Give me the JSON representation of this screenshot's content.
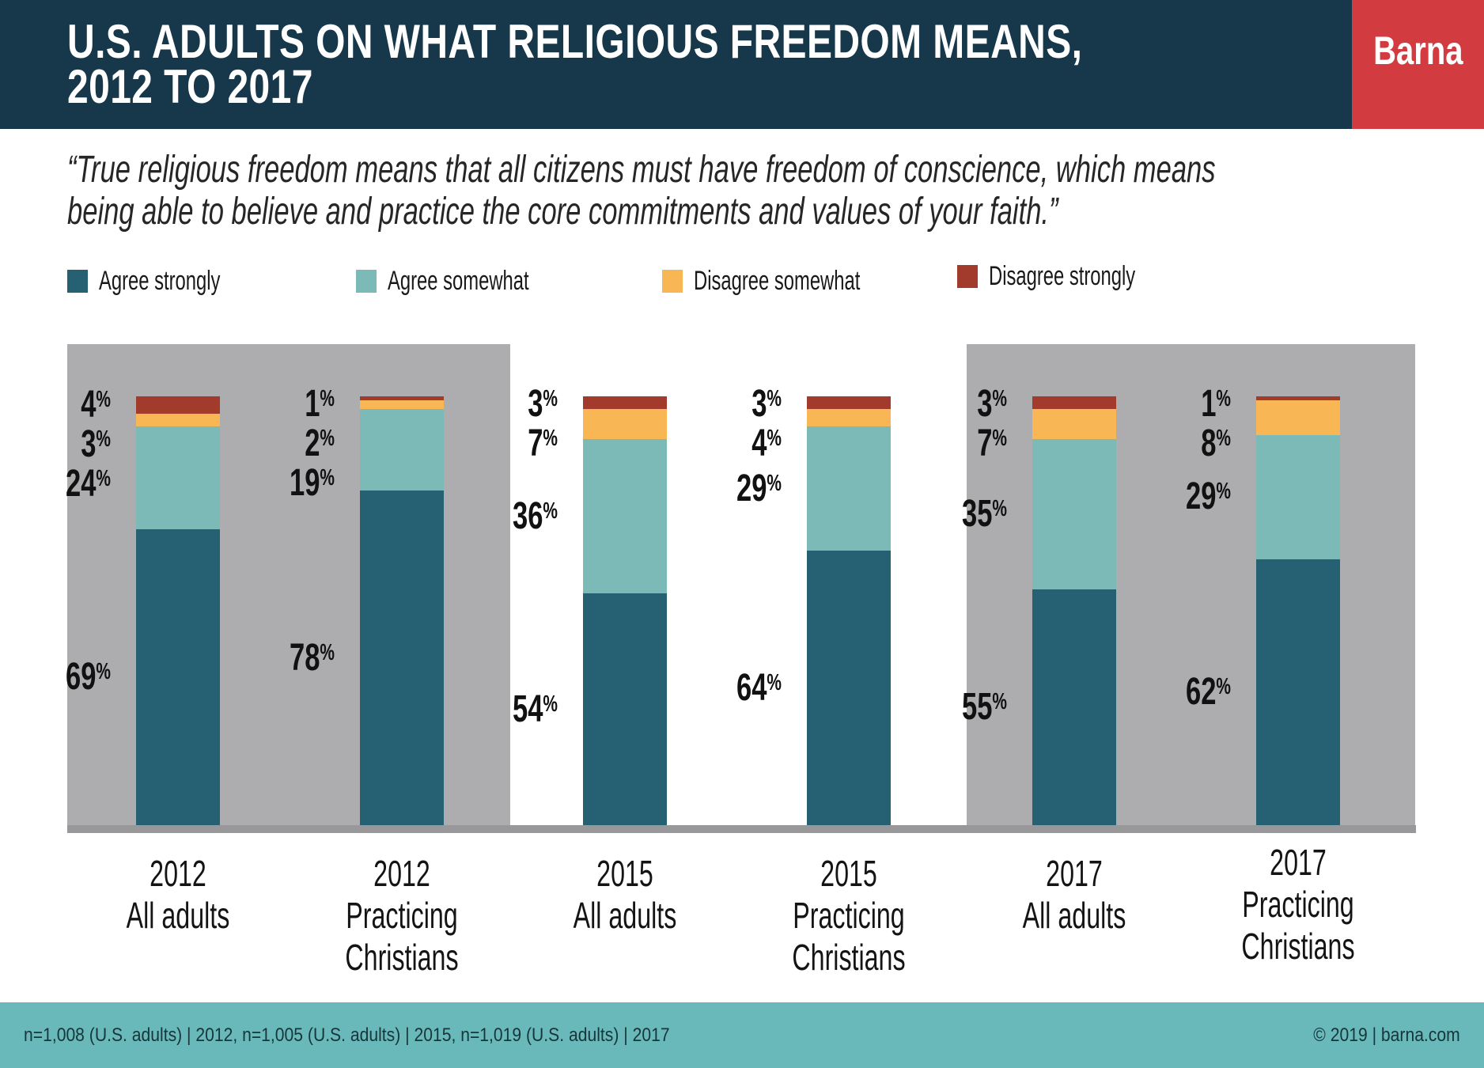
{
  "header": {
    "title_line1": "U.S. ADULTS ON WHAT RELIGIOUS FREEDOM MEANS,",
    "title_line2": "2012 TO 2017",
    "logo": "Barna"
  },
  "quote": {
    "line1": "“True religious freedom means that all citizens must have freedom of conscience, which means",
    "line2": "being able to believe and practice the core commitments and values of your faith.”"
  },
  "chart_data": {
    "type": "bar",
    "stacked": true,
    "unit": "%",
    "ylim": [
      0,
      100
    ],
    "grid": false,
    "legend_position": "top",
    "value_labels": "left-of-bar",
    "categories": [
      {
        "year": "2012",
        "group": "All adults"
      },
      {
        "year": "2012",
        "group": "Practicing Christians"
      },
      {
        "year": "2015",
        "group": "All adults"
      },
      {
        "year": "2015",
        "group": "Practicing Christians"
      },
      {
        "year": "2017",
        "group": "All adults"
      },
      {
        "year": "2017",
        "group": "Practicing Christians"
      }
    ],
    "series": [
      {
        "name": "Agree strongly",
        "color": "#266073",
        "values": [
          69,
          78,
          54,
          64,
          55,
          62
        ]
      },
      {
        "name": "Agree somewhat",
        "color": "#7cbab7",
        "values": [
          24,
          19,
          36,
          29,
          35,
          29
        ]
      },
      {
        "name": "Disagree somewhat",
        "color": "#f8b654",
        "values": [
          3,
          2,
          7,
          4,
          7,
          8
        ]
      },
      {
        "name": "Disagree strongly",
        "color": "#a23b2c",
        "values": [
          4,
          1,
          3,
          3,
          3,
          1
        ]
      }
    ],
    "panels": [
      {
        "years": "2012",
        "shaded": true
      },
      {
        "years": "2015",
        "shaded": false
      },
      {
        "years": "2017",
        "shaded": true
      }
    ]
  },
  "footer": {
    "left": "n=1,008 (U.S. adults) | 2012, n=1,005 (U.S. adults) | 2015, n=1,019 (U.S. adults) | 2017",
    "right": "© 2019 | barna.com"
  },
  "colors": {
    "header_navy": "#16384a",
    "logo_red": "#d23b40",
    "footer_teal": "#6ab9ba",
    "panel_gray": "#adadb0",
    "axis_gray": "#98989b",
    "text_dark": "#111111"
  }
}
